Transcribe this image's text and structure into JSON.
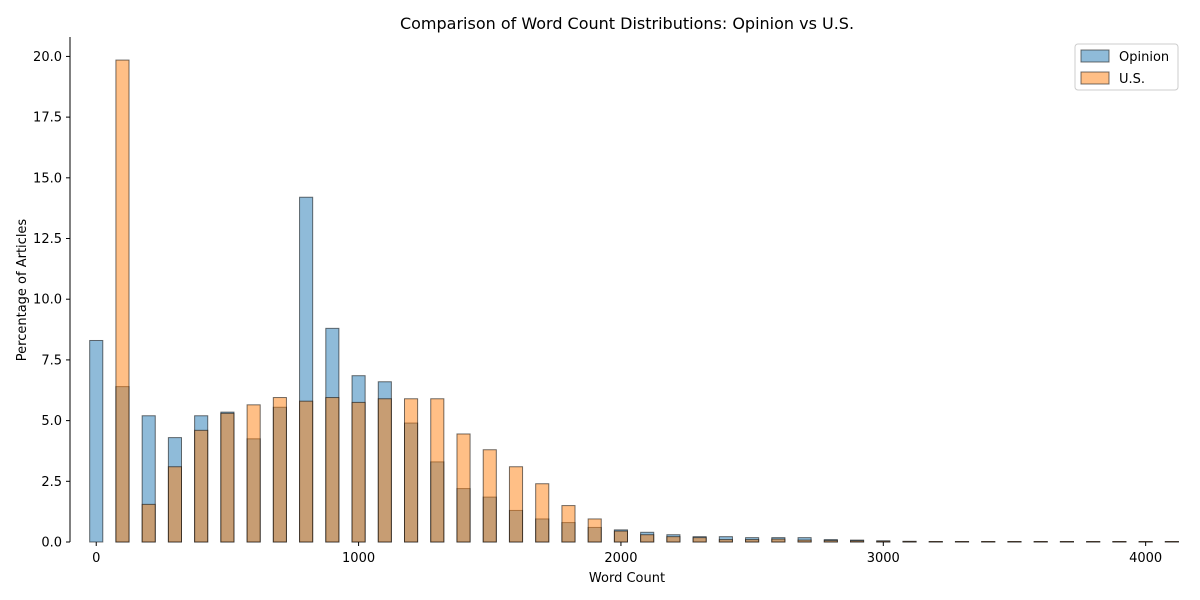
{
  "chart_data": {
    "type": "bar",
    "title": "Comparison of Word Count Distributions: Opinion vs U.S.",
    "xlabel": "Word Count",
    "ylabel": "Percentage of Articles",
    "xlim": [
      -100,
      4150
    ],
    "ylim": [
      0,
      20.8
    ],
    "x_ticks": [
      0,
      1000,
      2000,
      3000,
      4000
    ],
    "y_ticks": [
      0.0,
      2.5,
      5.0,
      7.5,
      10.0,
      12.5,
      15.0,
      17.5,
      20.0
    ],
    "x_tick_labels": [
      "0",
      "1000",
      "2000",
      "3000",
      "4000"
    ],
    "y_tick_labels": [
      "0.0",
      "2.5",
      "5.0",
      "7.5",
      "10.0",
      "12.5",
      "15.0",
      "17.5",
      "20.0"
    ],
    "legend_position": "top-right",
    "bin_width": 50,
    "series": [
      {
        "name": "Opinion",
        "color": "#1f77b4",
        "x": [
          0,
          100,
          200,
          300,
          400,
          500,
          600,
          700,
          800,
          900,
          1000,
          1100,
          1200,
          1300,
          1400,
          1500,
          1600,
          1700,
          1800,
          1900,
          2000,
          2100,
          2200,
          2300,
          2400,
          2500,
          2600,
          2700,
          2800,
          2900,
          3000,
          3100,
          3200,
          3300,
          3400,
          3500,
          3600,
          3700,
          3800,
          3900,
          4000,
          4100
        ],
        "values": [
          8.3,
          6.4,
          5.2,
          4.3,
          5.2,
          5.35,
          4.25,
          5.55,
          14.2,
          8.8,
          6.85,
          6.6,
          4.9,
          3.3,
          2.2,
          1.85,
          1.3,
          0.95,
          0.8,
          0.6,
          0.5,
          0.4,
          0.3,
          0.22,
          0.22,
          0.18,
          0.18,
          0.18,
          0.1,
          0.08,
          0.05,
          0.03,
          0.02,
          0.02,
          0.02,
          0.02,
          0.02,
          0.02,
          0.02,
          0.02,
          0.02,
          0.02
        ]
      },
      {
        "name": "U.S.",
        "color": "#ff7f0e",
        "x": [
          0,
          100,
          200,
          300,
          400,
          500,
          600,
          700,
          800,
          900,
          1000,
          1100,
          1200,
          1300,
          1400,
          1500,
          1600,
          1700,
          1800,
          1900,
          2000,
          2100,
          2200,
          2300,
          2400,
          2500,
          2600,
          2700,
          2800,
          2900,
          3000,
          3100,
          3200,
          3300,
          3400,
          3500,
          3600,
          3700,
          3800,
          3900,
          4000,
          4100
        ],
        "values": [
          0,
          19.85,
          1.55,
          3.1,
          4.6,
          5.3,
          5.65,
          5.95,
          5.8,
          5.95,
          5.75,
          5.9,
          5.9,
          5.9,
          4.45,
          3.8,
          3.1,
          2.4,
          1.5,
          0.95,
          0.45,
          0.3,
          0.22,
          0.18,
          0.1,
          0.1,
          0.12,
          0.08,
          0.06,
          0.05,
          0.03,
          0.02,
          0.02,
          0.02,
          0.02,
          0.02,
          0.02,
          0.02,
          0.02,
          0.02,
          0.02,
          0.02
        ]
      }
    ]
  }
}
